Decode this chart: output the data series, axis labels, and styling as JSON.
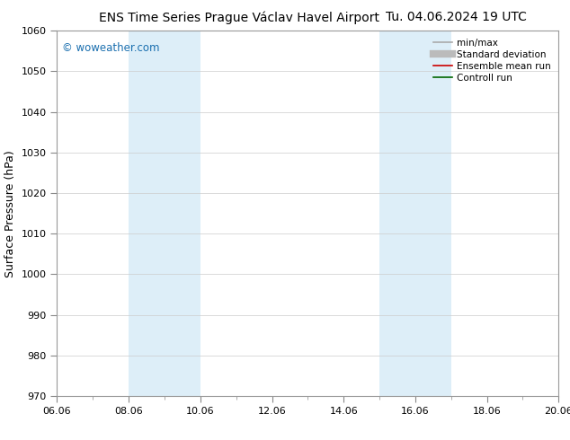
{
  "title_left": "ENS Time Series Prague Václav Havel Airport",
  "title_right": "Tu. 04.06.2024 19 UTC",
  "ylabel": "Surface Pressure (hPa)",
  "ylim": [
    970,
    1060
  ],
  "yticks": [
    970,
    980,
    990,
    1000,
    1010,
    1020,
    1030,
    1040,
    1050,
    1060
  ],
  "xlim_days": [
    0,
    14
  ],
  "xtick_labels": [
    "06.06",
    "08.06",
    "10.06",
    "12.06",
    "14.06",
    "16.06",
    "18.06",
    "20.06"
  ],
  "xtick_positions_days": [
    0,
    2,
    4,
    6,
    8,
    10,
    12,
    14
  ],
  "shaded_bands": [
    {
      "x0_day": 2.0,
      "x1_day": 4.0
    },
    {
      "x0_day": 9.0,
      "x1_day": 11.0
    }
  ],
  "shade_color": "#ddeef8",
  "watermark": "© woweather.com",
  "watermark_color": "#1a6faf",
  "legend_items": [
    {
      "label": "min/max",
      "color": "#aaaaaa",
      "lw": 1.2,
      "style": "-"
    },
    {
      "label": "Standard deviation",
      "color": "#bbbbbb",
      "lw": 6,
      "style": "-"
    },
    {
      "label": "Ensemble mean run",
      "color": "#cc0000",
      "lw": 1.2,
      "style": "-"
    },
    {
      "label": "Controll run",
      "color": "#006600",
      "lw": 1.2,
      "style": "-"
    }
  ],
  "bg_color": "#ffffff",
  "grid_color": "#cccccc",
  "title_fontsize": 10,
  "axis_fontsize": 9,
  "tick_fontsize": 8,
  "legend_fontsize": 7.5
}
